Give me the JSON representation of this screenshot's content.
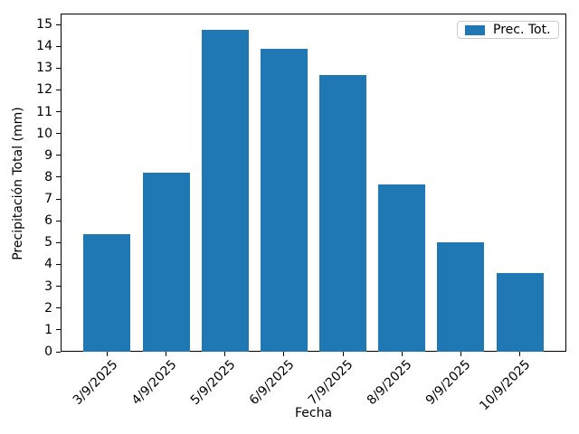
{
  "figure": {
    "background": "#ffffff",
    "axis_color": "#000000",
    "legend_border_color": "#cccccc"
  },
  "chart_data": {
    "type": "bar",
    "title": "",
    "xlabel": "Fecha",
    "ylabel": "Precipitación Total (mm)",
    "series_name": "Prec. Tot.",
    "categories": [
      "3/9/2025",
      "4/9/2025",
      "5/9/2025",
      "6/9/2025",
      "7/9/2025",
      "8/9/2025",
      "9/9/2025",
      "10/9/2025"
    ],
    "values": [
      5.4,
      8.2,
      14.75,
      13.9,
      12.7,
      7.65,
      5.0,
      3.6
    ],
    "bar_color": "#1f77b4",
    "ylim": [
      0,
      15.5
    ],
    "yticks": [
      0,
      1,
      2,
      3,
      4,
      5,
      6,
      7,
      8,
      9,
      10,
      11,
      12,
      13,
      14,
      15
    ],
    "x_tick_rotation": 45,
    "grid": false,
    "legend_position": "upper right"
  }
}
